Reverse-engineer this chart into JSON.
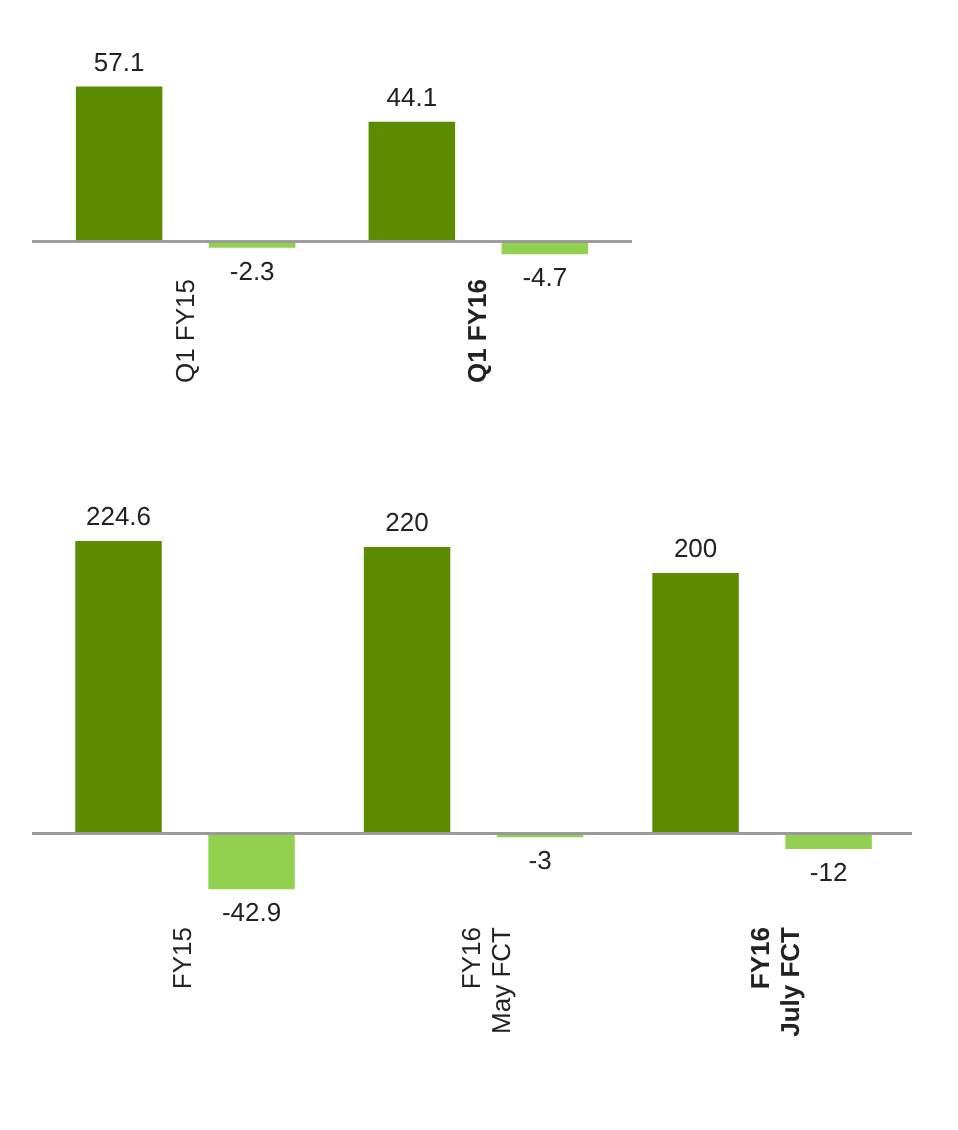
{
  "chart_data": [
    {
      "type": "bar",
      "categories": [
        "Q1 FY15",
        "Q1 FY16"
      ],
      "data_labels": true,
      "series": [
        {
          "color": "#5b8c00",
          "values": [
            57.1,
            44.1
          ]
        },
        {
          "color": "#92d050",
          "values": [
            -2.3,
            -4.7
          ]
        }
      ]
    },
    {
      "type": "bar",
      "categories": [
        "FY15",
        "FY16\nMay FCT",
        "FY16\nJuly FCT"
      ],
      "data_labels": true,
      "series": [
        {
          "color": "#5b8c00",
          "values": [
            224.6,
            220,
            200
          ]
        },
        {
          "color": "#92d050",
          "values": [
            -42.9,
            -3,
            -12
          ]
        }
      ]
    }
  ]
}
